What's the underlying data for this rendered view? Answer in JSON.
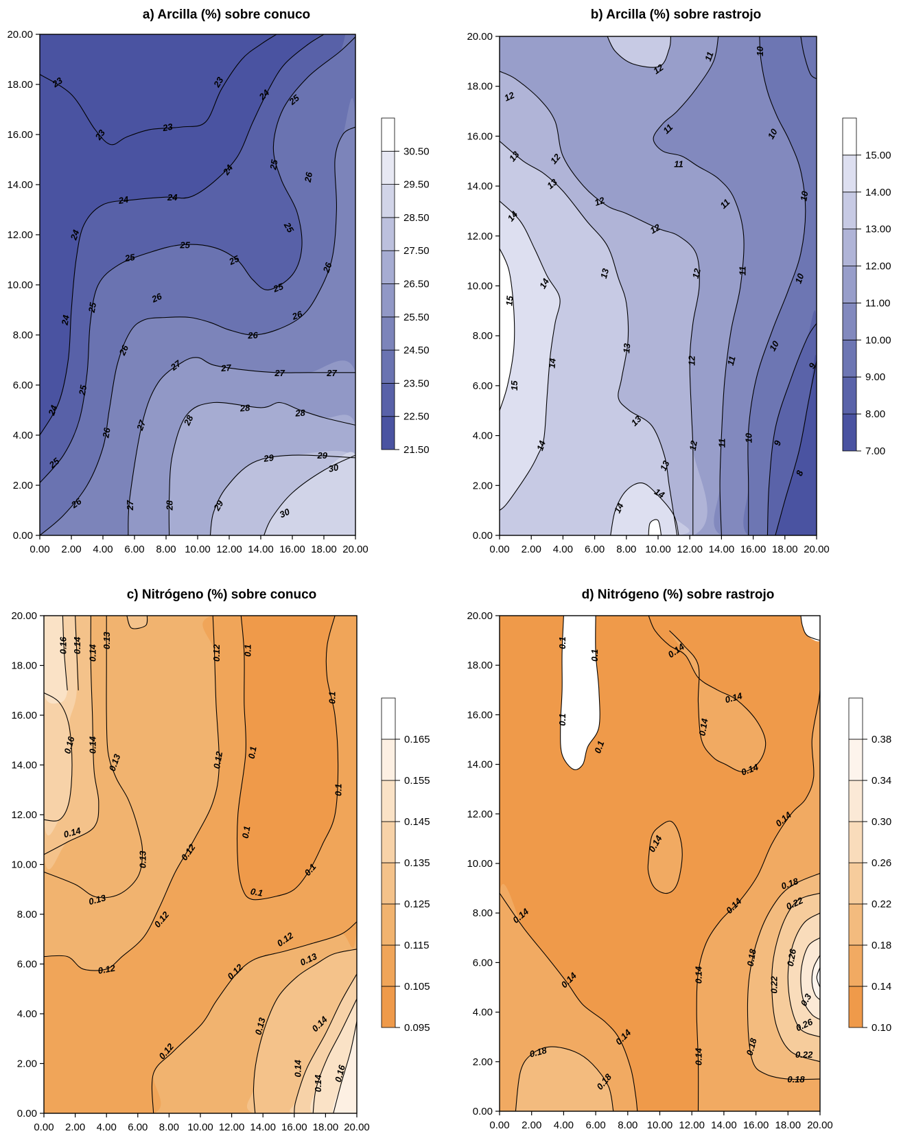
{
  "chart_data": [
    {
      "id": "a",
      "type": "contour",
      "title": "a)    Arcilla (%) sobre conuco",
      "xlim": [
        0,
        20
      ],
      "ylim": [
        0,
        20
      ],
      "xticks": [
        "0.00",
        "2.00",
        "4.00",
        "6.00",
        "8.00",
        "10.00",
        "12.00",
        "14.00",
        "16.00",
        "18.00",
        "20.00"
      ],
      "yticks": [
        "0.00",
        "2.00",
        "4.00",
        "6.00",
        "8.00",
        "10.00",
        "12.00",
        "14.00",
        "16.00",
        "18.00",
        "20.00"
      ],
      "colorbar_ticks": [
        "21.50",
        "22.50",
        "23.50",
        "24.50",
        "25.50",
        "26.50",
        "27.50",
        "28.50",
        "29.50",
        "30.50"
      ],
      "colorbar_range": [
        21.5,
        31.5
      ],
      "colors": [
        "#4a53a1",
        "#5861a8",
        "#6a73b1",
        "#7c84ba",
        "#9198c6",
        "#a6acd2",
        "#bcc0dd",
        "#d1d4e8",
        "#e7e8f3",
        "#ffffff"
      ],
      "contour_values": [
        23,
        24,
        25,
        26,
        27,
        28,
        29,
        30
      ]
    },
    {
      "id": "b",
      "type": "contour",
      "title": "b)    Arcilla (%) sobre rastrojo",
      "xlim": [
        0,
        20
      ],
      "ylim": [
        0,
        20
      ],
      "xticks": [
        "0.00",
        "2.00",
        "4.00",
        "6.00",
        "8.00",
        "10.00",
        "12.00",
        "14.00",
        "16.00",
        "18.00",
        "20.00"
      ],
      "yticks": [
        "0.00",
        "2.00",
        "4.00",
        "6.00",
        "8.00",
        "10.00",
        "12.00",
        "14.00",
        "16.00",
        "18.00",
        "20.00"
      ],
      "colorbar_ticks": [
        "7.00",
        "8.00",
        "9.00",
        "10.00",
        "11.00",
        "12.00",
        "13.00",
        "14.00",
        "15.00"
      ],
      "colorbar_range": [
        7,
        16
      ],
      "colors": [
        "#4a53a1",
        "#5a63a9",
        "#6d76b3",
        "#8289be",
        "#989eca",
        "#b0b4d7",
        "#c7cae4",
        "#dddff0",
        "#ffffff"
      ],
      "contour_values": [
        8,
        9,
        10,
        11,
        12,
        13,
        14,
        15
      ]
    },
    {
      "id": "c",
      "type": "contour",
      "title": "c)    Nitrógeno (%) sobre conuco",
      "xlim": [
        0,
        20
      ],
      "ylim": [
        0,
        20
      ],
      "xticks": [
        "0.00",
        "2.00",
        "4.00",
        "6.00",
        "8.00",
        "10.00",
        "12.00",
        "14.00",
        "16.00",
        "18.00",
        "20.00"
      ],
      "yticks": [
        "0.00",
        "2.00",
        "4.00",
        "6.00",
        "8.00",
        "10.00",
        "12.00",
        "14.00",
        "16.00",
        "18.00",
        "20.00"
      ],
      "colorbar_ticks": [
        "0.095",
        "0.105",
        "0.115",
        "0.125",
        "0.135",
        "0.145",
        "0.155",
        "0.165"
      ],
      "colorbar_range": [
        0.095,
        0.175
      ],
      "colors": [
        "#ef9a4a",
        "#f0a559",
        "#f1b36f",
        "#f4c28a",
        "#f7d2a8",
        "#fae2c6",
        "#fdf0e3",
        "#ffffff"
      ],
      "contour_values": [
        0.1,
        0.12,
        0.13,
        0.14,
        0.16
      ]
    },
    {
      "id": "d",
      "type": "contour",
      "title": "d)    Nitrógeno (%) sobre rastrojo",
      "xlim": [
        0,
        20
      ],
      "ylim": [
        0,
        20
      ],
      "xticks": [
        "0.00",
        "2.00",
        "4.00",
        "6.00",
        "8.00",
        "10.00",
        "12.00",
        "14.00",
        "16.00",
        "18.00",
        "20.00"
      ],
      "yticks": [
        "0.00",
        "2.00",
        "4.00",
        "6.00",
        "8.00",
        "10.00",
        "12.00",
        "14.00",
        "16.00",
        "18.00",
        "20.00"
      ],
      "colorbar_ticks": [
        "0.10",
        "0.14",
        "0.18",
        "0.22",
        "0.26",
        "0.30",
        "0.34",
        "0.38"
      ],
      "colorbar_range": [
        0.1,
        0.42
      ],
      "colors": [
        "#ef9a4a",
        "#f1aa62",
        "#f3bb7e",
        "#f6cc9c",
        "#f9dcbb",
        "#fbe9d6",
        "#fdf4ec",
        "#ffffff"
      ],
      "contour_values": [
        0.1,
        0.14,
        0.18,
        0.22,
        0.26,
        0.3
      ]
    }
  ]
}
